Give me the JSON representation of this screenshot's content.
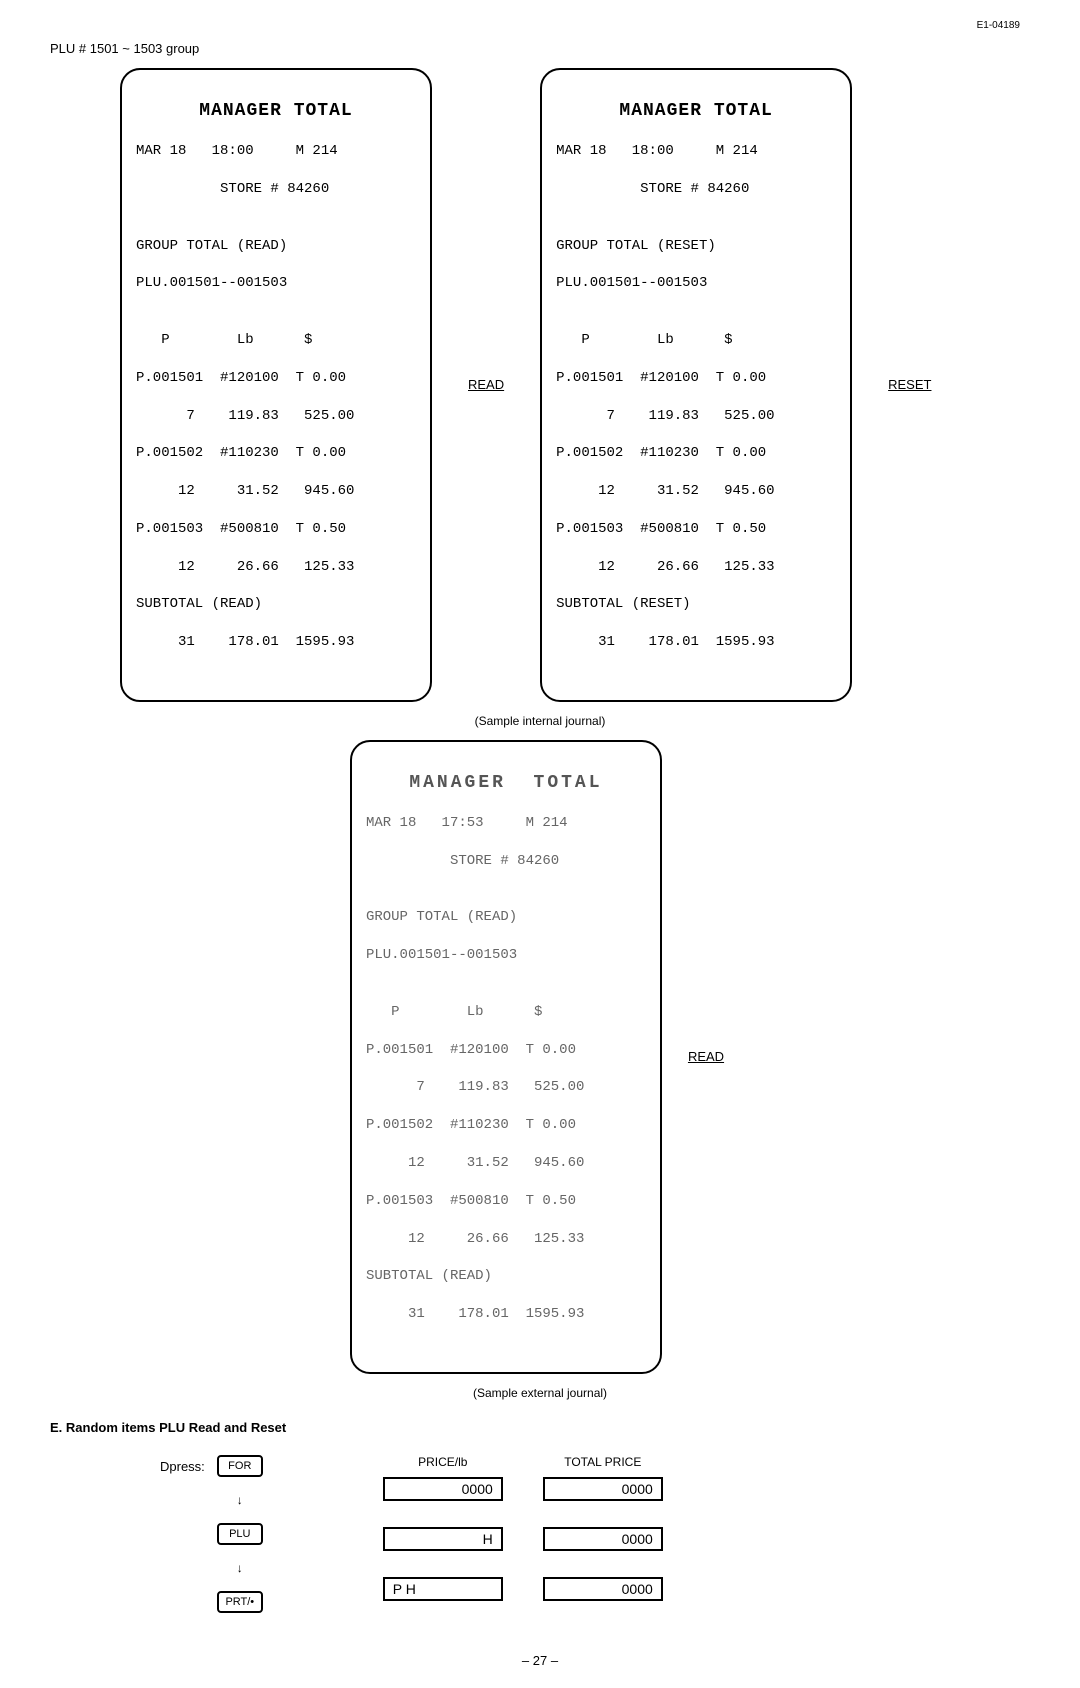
{
  "doc_id": "E1-04189",
  "heading": "PLU # 1501 ~ 1503 group",
  "receipts": {
    "read": {
      "title": "MANAGER TOTAL",
      "line1": "MAR 18   18:00     M 214",
      "line2": "          STORE # 84260",
      "grp1": "GROUP TOTAL (READ)",
      "grp2": "PLU.001501--001503",
      "cols": "   P        Lb      $",
      "r1": "P.001501  #120100  T 0.00",
      "r2": "      7    119.83   525.00",
      "r3": "P.001502  #110230  T 0.00",
      "r4": "     12     31.52   945.60",
      "r5": "P.001503  #500810  T 0.50",
      "r6": "     12     26.66   125.33",
      "s1": "SUBTOTAL (READ)",
      "s2": "     31    178.01  1595.93",
      "side_label": "READ"
    },
    "reset": {
      "title": "MANAGER TOTAL",
      "line1": "MAR 18   18:00     M 214",
      "line2": "          STORE # 84260",
      "grp1": "GROUP TOTAL (RESET)",
      "grp2": "PLU.001501--001503",
      "cols": "   P        Lb      $",
      "r1": "P.001501  #120100  T 0.00",
      "r2": "      7    119.83   525.00",
      "r3": "P.001502  #110230  T 0.00",
      "r4": "     12     31.52   945.60",
      "r5": "P.001503  #500810  T 0.50",
      "r6": "     12     26.66   125.33",
      "s1": "SUBTOTAL (RESET)",
      "s2": "     31    178.01  1595.93",
      "side_label": "RESET"
    },
    "journal": {
      "title": "MANAGER  TOTAL",
      "line1": "MAR 18   17:53     M 214",
      "line2": "          STORE # 84260",
      "grp1": "GROUP TOTAL (READ)",
      "grp2": "PLU.001501--001503",
      "cols": "   P        Lb      $",
      "r1": "P.001501  #120100  T 0.00",
      "r2": "      7    119.83   525.00",
      "r3": "P.001502  #110230  T 0.00",
      "r4": "     12     31.52   945.60",
      "r5": "P.001503  #500810  T 0.50",
      "r6": "     12     26.66   125.33",
      "s1": "SUBTOTAL (READ)",
      "s2": "     31    178.01  1595.93",
      "side_label": "READ"
    }
  },
  "caption1": "(Sample internal journal)",
  "caption2": "(Sample external journal)",
  "section_e": "E. Random items PLU Read and Reset",
  "press_label": "Dpress:",
  "buttons": {
    "for": "FOR",
    "plu": "PLU",
    "prt": "PRT/•"
  },
  "disp": {
    "h1": "PRICE/lb",
    "h2": "TOTAL PRICE",
    "c1r1": "0000",
    "c2r1": "0000",
    "c1r2": "H",
    "c2r2": "0000",
    "c1r3": "P   H",
    "c2r3": "0000"
  },
  "page": "– 27 –"
}
